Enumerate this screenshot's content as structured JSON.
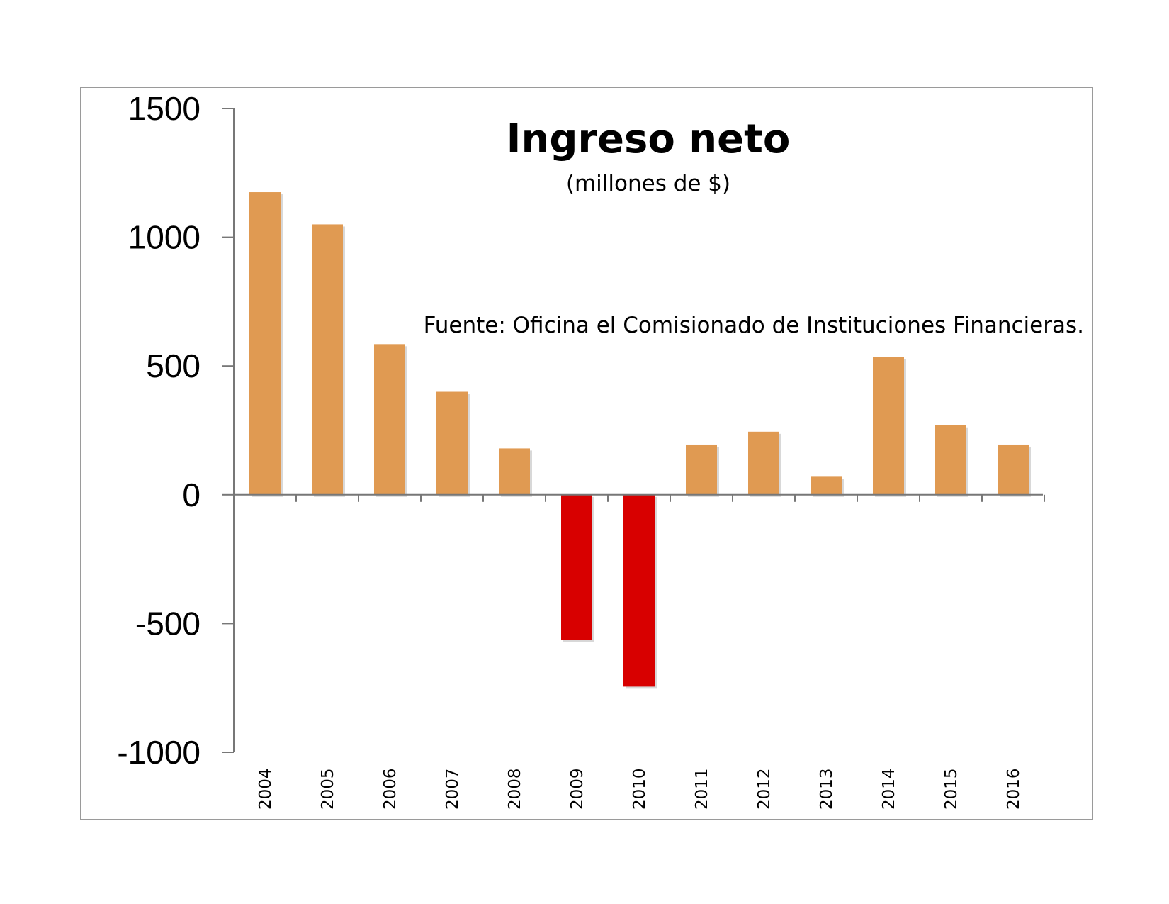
{
  "chart_data": {
    "type": "bar",
    "title": "Ingreso neto",
    "subtitle": "(millones de $)",
    "annotation": "Fuente: Oficina el Comisionado de Instituciones Financieras.",
    "categories": [
      "2004",
      "2005",
      "2006",
      "2007",
      "2008",
      "2009",
      "2010",
      "2011",
      "2012",
      "2013",
      "2014",
      "2015",
      "2016"
    ],
    "values": [
      1175,
      1050,
      585,
      400,
      180,
      -565,
      -745,
      195,
      245,
      70,
      535,
      270,
      195
    ],
    "ylim": [
      -1000,
      1500
    ],
    "yticks": [
      "1500",
      "1000",
      "500",
      "0",
      "-500",
      "-1000"
    ],
    "xlabel": "",
    "ylabel": "",
    "grid": false,
    "colors": {
      "positive": "#E09A52",
      "negative": "#D80000",
      "axis": "#777777",
      "frame": "#9a9a9a"
    }
  }
}
